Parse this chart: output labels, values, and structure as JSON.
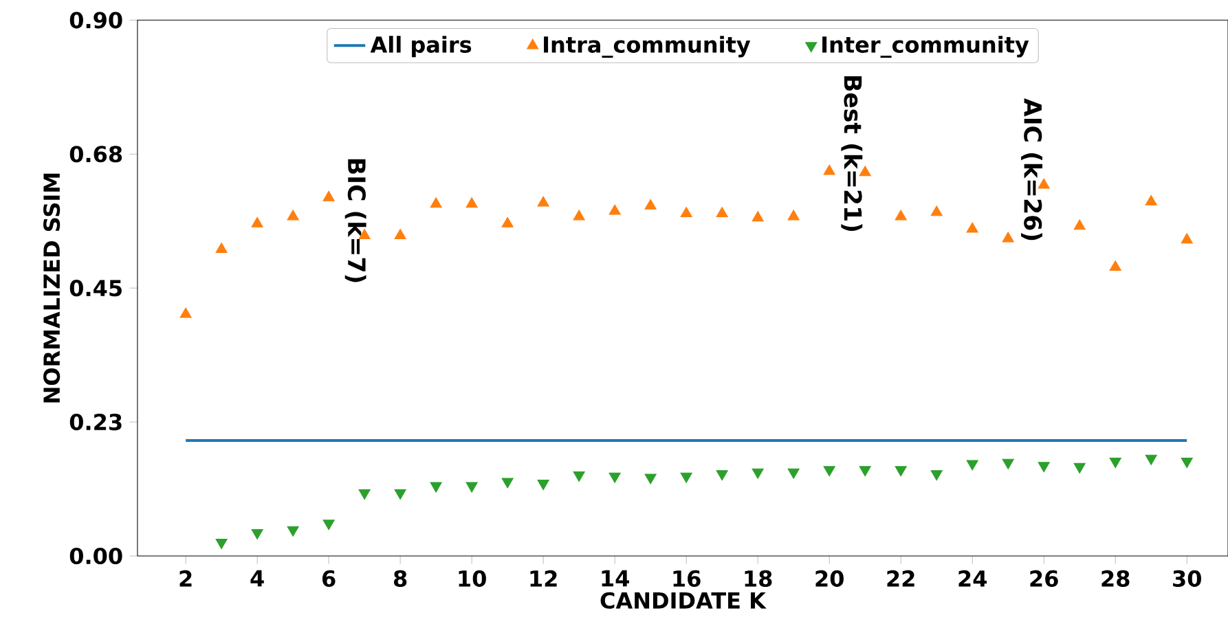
{
  "chart_data": {
    "type": "scatter",
    "xlabel": "CANDIDATE K",
    "ylabel": "NORMALIZED SSIM",
    "x": [
      2,
      3,
      4,
      5,
      6,
      7,
      8,
      9,
      10,
      11,
      12,
      13,
      14,
      15,
      16,
      17,
      18,
      19,
      20,
      21,
      22,
      23,
      24,
      25,
      26,
      27,
      28,
      29,
      30
    ],
    "xlim": [
      0.65,
      31.15
    ],
    "xticks": [
      2,
      4,
      6,
      8,
      10,
      12,
      14,
      16,
      18,
      20,
      22,
      24,
      26,
      28,
      30
    ],
    "ylim": [
      0,
      0.9
    ],
    "yticks": [
      {
        "value": 0,
        "label": "0.00"
      },
      {
        "value": 0.225,
        "label": "0.23"
      },
      {
        "value": 0.45,
        "label": "0.45"
      },
      {
        "value": 0.675,
        "label": "0.68"
      },
      {
        "value": 0.9,
        "label": "0.90"
      }
    ],
    "legend": "top",
    "grid": false,
    "series": [
      {
        "name": "All pairs",
        "type": "line",
        "color": "#1f77b4",
        "x": [
          2,
          30
        ],
        "values": [
          0.194,
          0.194
        ]
      },
      {
        "name": "Intra_community",
        "marker": "triangle",
        "color": "#ff7f0e",
        "values": [
          0.406,
          0.515,
          0.558,
          0.57,
          0.602,
          0.538,
          0.538,
          0.591,
          0.591,
          0.558,
          0.593,
          0.57,
          0.579,
          0.588,
          0.575,
          0.575,
          0.568,
          0.57,
          0.646,
          0.644,
          0.57,
          0.577,
          0.549,
          0.533,
          0.623,
          0.554,
          0.485,
          0.595,
          0.531
        ]
      },
      {
        "name": "Inter_community",
        "marker": "triangle down",
        "color": "#2ca02c",
        "values": [
          null,
          0.023,
          0.039,
          0.044,
          0.055,
          0.106,
          0.106,
          0.118,
          0.118,
          0.125,
          0.122,
          0.136,
          0.134,
          0.132,
          0.134,
          0.138,
          0.141,
          0.141,
          0.145,
          0.145,
          0.145,
          0.138,
          0.155,
          0.157,
          0.152,
          0.15,
          0.159,
          0.164,
          0.159
        ]
      }
    ],
    "annotations": [
      "BIC (k=7)",
      "Best (k=21)",
      "AIC (k=26)"
    ]
  }
}
